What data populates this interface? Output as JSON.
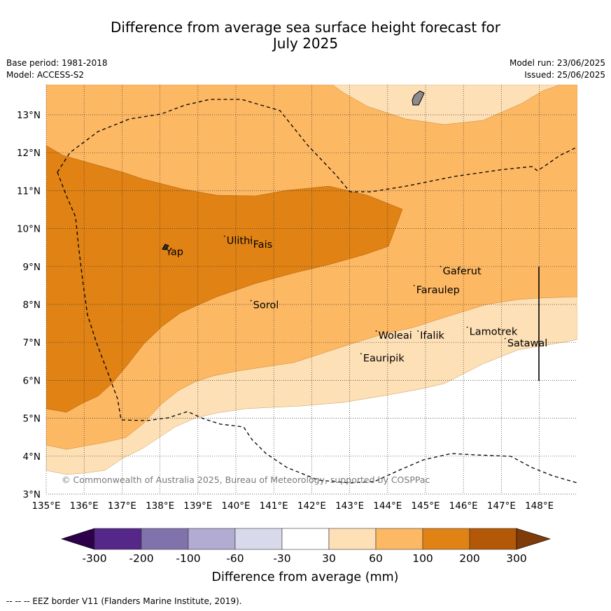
{
  "title_line1": "Difference from average sea surface height forecast for",
  "title_line2": "July 2025",
  "meta_left": {
    "base_period": "Base period: 1981-2018",
    "model": "Model: ACCESS-S2"
  },
  "meta_right": {
    "model_run": "Model run: 23/06/2025",
    "issued": "Issued: 25/06/2025"
  },
  "map": {
    "lon_range": [
      135,
      149
    ],
    "lat_range": [
      3,
      13.8
    ],
    "x_ticks": [
      "135°E",
      "136°E",
      "137°E",
      "138°E",
      "139°E",
      "140°E",
      "141°E",
      "142°E",
      "143°E",
      "144°E",
      "145°E",
      "146°E",
      "147°E",
      "148°E"
    ],
    "y_ticks": [
      "3°N",
      "4°N",
      "5°N",
      "6°N",
      "7°N",
      "8°N",
      "9°N",
      "10°N",
      "11°N",
      "12°N",
      "13°N"
    ],
    "grid": "dotted",
    "copyright": "© Commonwealth of Australia 2025, Bureau of Meteorology, supported by COSPPac",
    "places": [
      {
        "name": "Yap",
        "lon": 138.1,
        "lat": 9.5
      },
      {
        "name": "Ulithi",
        "lon": 139.7,
        "lat": 9.8
      },
      {
        "name": "Fais",
        "lon": 140.4,
        "lat": 9.7
      },
      {
        "name": "Sorol",
        "lon": 140.4,
        "lat": 8.1
      },
      {
        "name": "Gaferut",
        "lon": 145.4,
        "lat": 9.0
      },
      {
        "name": "Faraulep",
        "lon": 144.7,
        "lat": 8.5
      },
      {
        "name": "Woleai",
        "lon": 143.7,
        "lat": 7.3
      },
      {
        "name": "Ifalik",
        "lon": 144.8,
        "lat": 7.3
      },
      {
        "name": "Lamotrek",
        "lon": 146.1,
        "lat": 7.4
      },
      {
        "name": "Satawal",
        "lon": 147.1,
        "lat": 7.1
      },
      {
        "name": "Eauripik",
        "lon": 143.3,
        "lat": 6.7
      }
    ]
  },
  "colorbar": {
    "labels": [
      "-300",
      "-200",
      "-100",
      "-60",
      "-30",
      "30",
      "60",
      "100",
      "200",
      "300"
    ],
    "colors": [
      "#2d004b",
      "#542788",
      "#8073ac",
      "#b2abd2",
      "#d8daeb",
      "#ffffff",
      "#fee0b6",
      "#fdb863",
      "#e08214",
      "#b35806",
      "#7f3b08"
    ],
    "title": "Difference from average (mm)"
  },
  "footnote": "--  --  -- EEZ border V11 (Flanders Marine Institute, 2019)."
}
